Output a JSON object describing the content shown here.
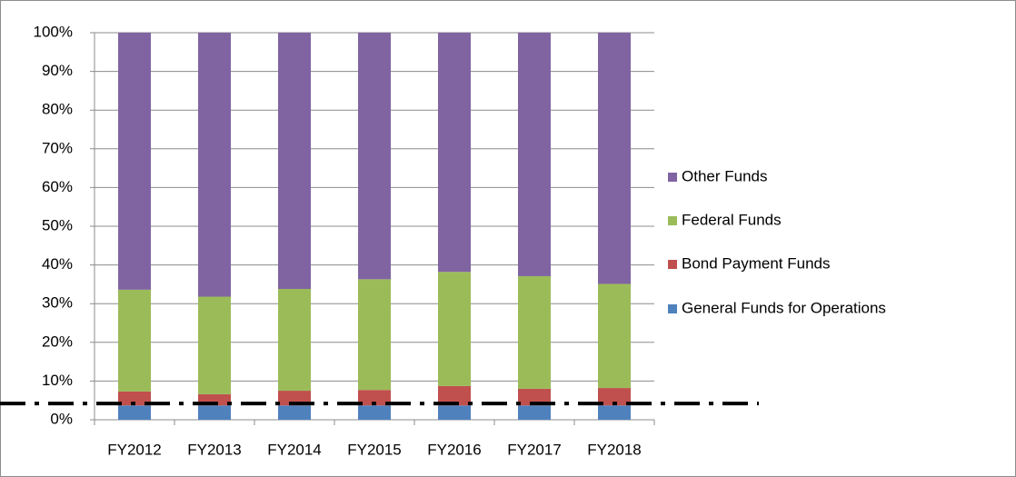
{
  "chart_data": {
    "type": "stacked_bar_percent",
    "categories": [
      "FY2012",
      "FY2013",
      "FY2014",
      "FY2015",
      "FY2016",
      "FY2017",
      "FY2018"
    ],
    "series": [
      {
        "name": "General Funds for Operations",
        "color": "#4f81bd",
        "values": [
          3.7,
          3.7,
          3.7,
          3.7,
          3.7,
          3.7,
          3.7
        ]
      },
      {
        "name": "Bond Payment Funds",
        "color": "#c0504d",
        "values": [
          3.6,
          2.9,
          3.8,
          4.0,
          5.0,
          4.3,
          4.5
        ]
      },
      {
        "name": "Federal Funds",
        "color": "#9bbb59",
        "values": [
          26.3,
          25.2,
          26.3,
          28.6,
          29.5,
          29.1,
          26.9
        ]
      },
      {
        "name": "Other Funds",
        "color": "#8064a2",
        "values": [
          66.4,
          68.2,
          66.2,
          63.7,
          61.8,
          62.9,
          64.9
        ]
      }
    ],
    "ylim": [
      0,
      100
    ],
    "yticks": [
      {
        "value": 0,
        "label": "0%"
      },
      {
        "value": 10,
        "label": "10%"
      },
      {
        "value": 20,
        "label": "20%"
      },
      {
        "value": 30,
        "label": "30%"
      },
      {
        "value": 40,
        "label": "40%"
      },
      {
        "value": 50,
        "label": "50%"
      },
      {
        "value": 60,
        "label": "60%"
      },
      {
        "value": 70,
        "label": "70%"
      },
      {
        "value": 80,
        "label": "80%"
      },
      {
        "value": 90,
        "label": "90%"
      },
      {
        "value": 100,
        "label": "100%"
      }
    ],
    "grid": true,
    "legend": "right",
    "reference_line": {
      "value": 4.2,
      "color": "#000000"
    }
  }
}
